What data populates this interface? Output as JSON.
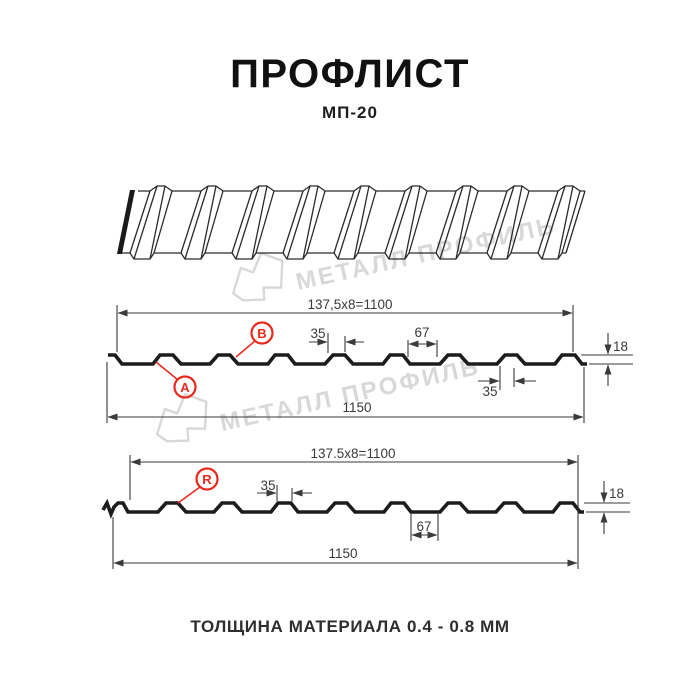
{
  "header": {
    "title": "ПРОФЛИСТ",
    "subtitle": "МП-20"
  },
  "watermark": {
    "text": "МЕТАЛЛ ПРОФИЛЬ",
    "color": "#d8d8d8"
  },
  "profile1": {
    "formula": "137,5x8=1100",
    "overall": "1150",
    "rib_top_width": "35",
    "valley_width": "67",
    "height": "18",
    "rib_bottom_width": "35",
    "label_a": "A",
    "label_b": "B"
  },
  "profile2": {
    "formula": "137.5x8=1100",
    "overall": "1150",
    "rib_top_width": "35",
    "valley_width": "67",
    "height": "18",
    "label_r": "R"
  },
  "footer": {
    "text": "ТОЛЩИНА МАТЕРИАЛА 0.4 - 0.8 ММ"
  },
  "colors": {
    "line": "#1c1c1c",
    "dim": "#3a3a3a",
    "red": "#e8291c",
    "watermark": "#d8d8d8"
  }
}
